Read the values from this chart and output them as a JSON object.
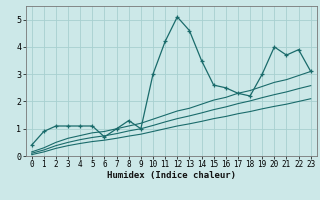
{
  "xlabel": "Humidex (Indice chaleur)",
  "bg_color": "#cce8e8",
  "grid_color": "#a8d0d0",
  "line_color": "#1a6b6b",
  "x_values": [
    0,
    1,
    2,
    3,
    4,
    5,
    6,
    7,
    8,
    9,
    10,
    11,
    12,
    13,
    14,
    15,
    16,
    17,
    18,
    19,
    20,
    21,
    22,
    23
  ],
  "main_line": [
    0.4,
    0.9,
    1.1,
    1.1,
    1.1,
    1.1,
    0.7,
    1.0,
    1.3,
    1.0,
    3.0,
    4.2,
    5.1,
    4.6,
    3.5,
    2.6,
    2.5,
    2.3,
    2.2,
    3.0,
    4.0,
    3.7,
    3.9,
    3.1
  ],
  "line_top": [
    0.15,
    0.3,
    0.5,
    0.65,
    0.75,
    0.85,
    0.9,
    1.0,
    1.1,
    1.2,
    1.35,
    1.5,
    1.65,
    1.75,
    1.9,
    2.05,
    2.15,
    2.3,
    2.4,
    2.55,
    2.7,
    2.8,
    2.95,
    3.1
  ],
  "line_mid": [
    0.1,
    0.22,
    0.38,
    0.5,
    0.6,
    0.68,
    0.74,
    0.82,
    0.92,
    1.0,
    1.12,
    1.25,
    1.37,
    1.47,
    1.58,
    1.7,
    1.8,
    1.92,
    2.02,
    2.14,
    2.25,
    2.35,
    2.47,
    2.58
  ],
  "line_bot": [
    0.05,
    0.15,
    0.28,
    0.38,
    0.46,
    0.53,
    0.58,
    0.65,
    0.73,
    0.8,
    0.9,
    1.0,
    1.1,
    1.18,
    1.27,
    1.37,
    1.45,
    1.55,
    1.63,
    1.73,
    1.82,
    1.9,
    2.0,
    2.1
  ],
  "xlim": [
    -0.5,
    23.5
  ],
  "ylim": [
    0,
    5.5
  ],
  "yticks": [
    0,
    1,
    2,
    3,
    4,
    5
  ],
  "xticks": [
    0,
    1,
    2,
    3,
    4,
    5,
    6,
    7,
    8,
    9,
    10,
    11,
    12,
    13,
    14,
    15,
    16,
    17,
    18,
    19,
    20,
    21,
    22,
    23
  ],
  "xlabel_fontsize": 6.5,
  "tick_fontsize": 5.5
}
